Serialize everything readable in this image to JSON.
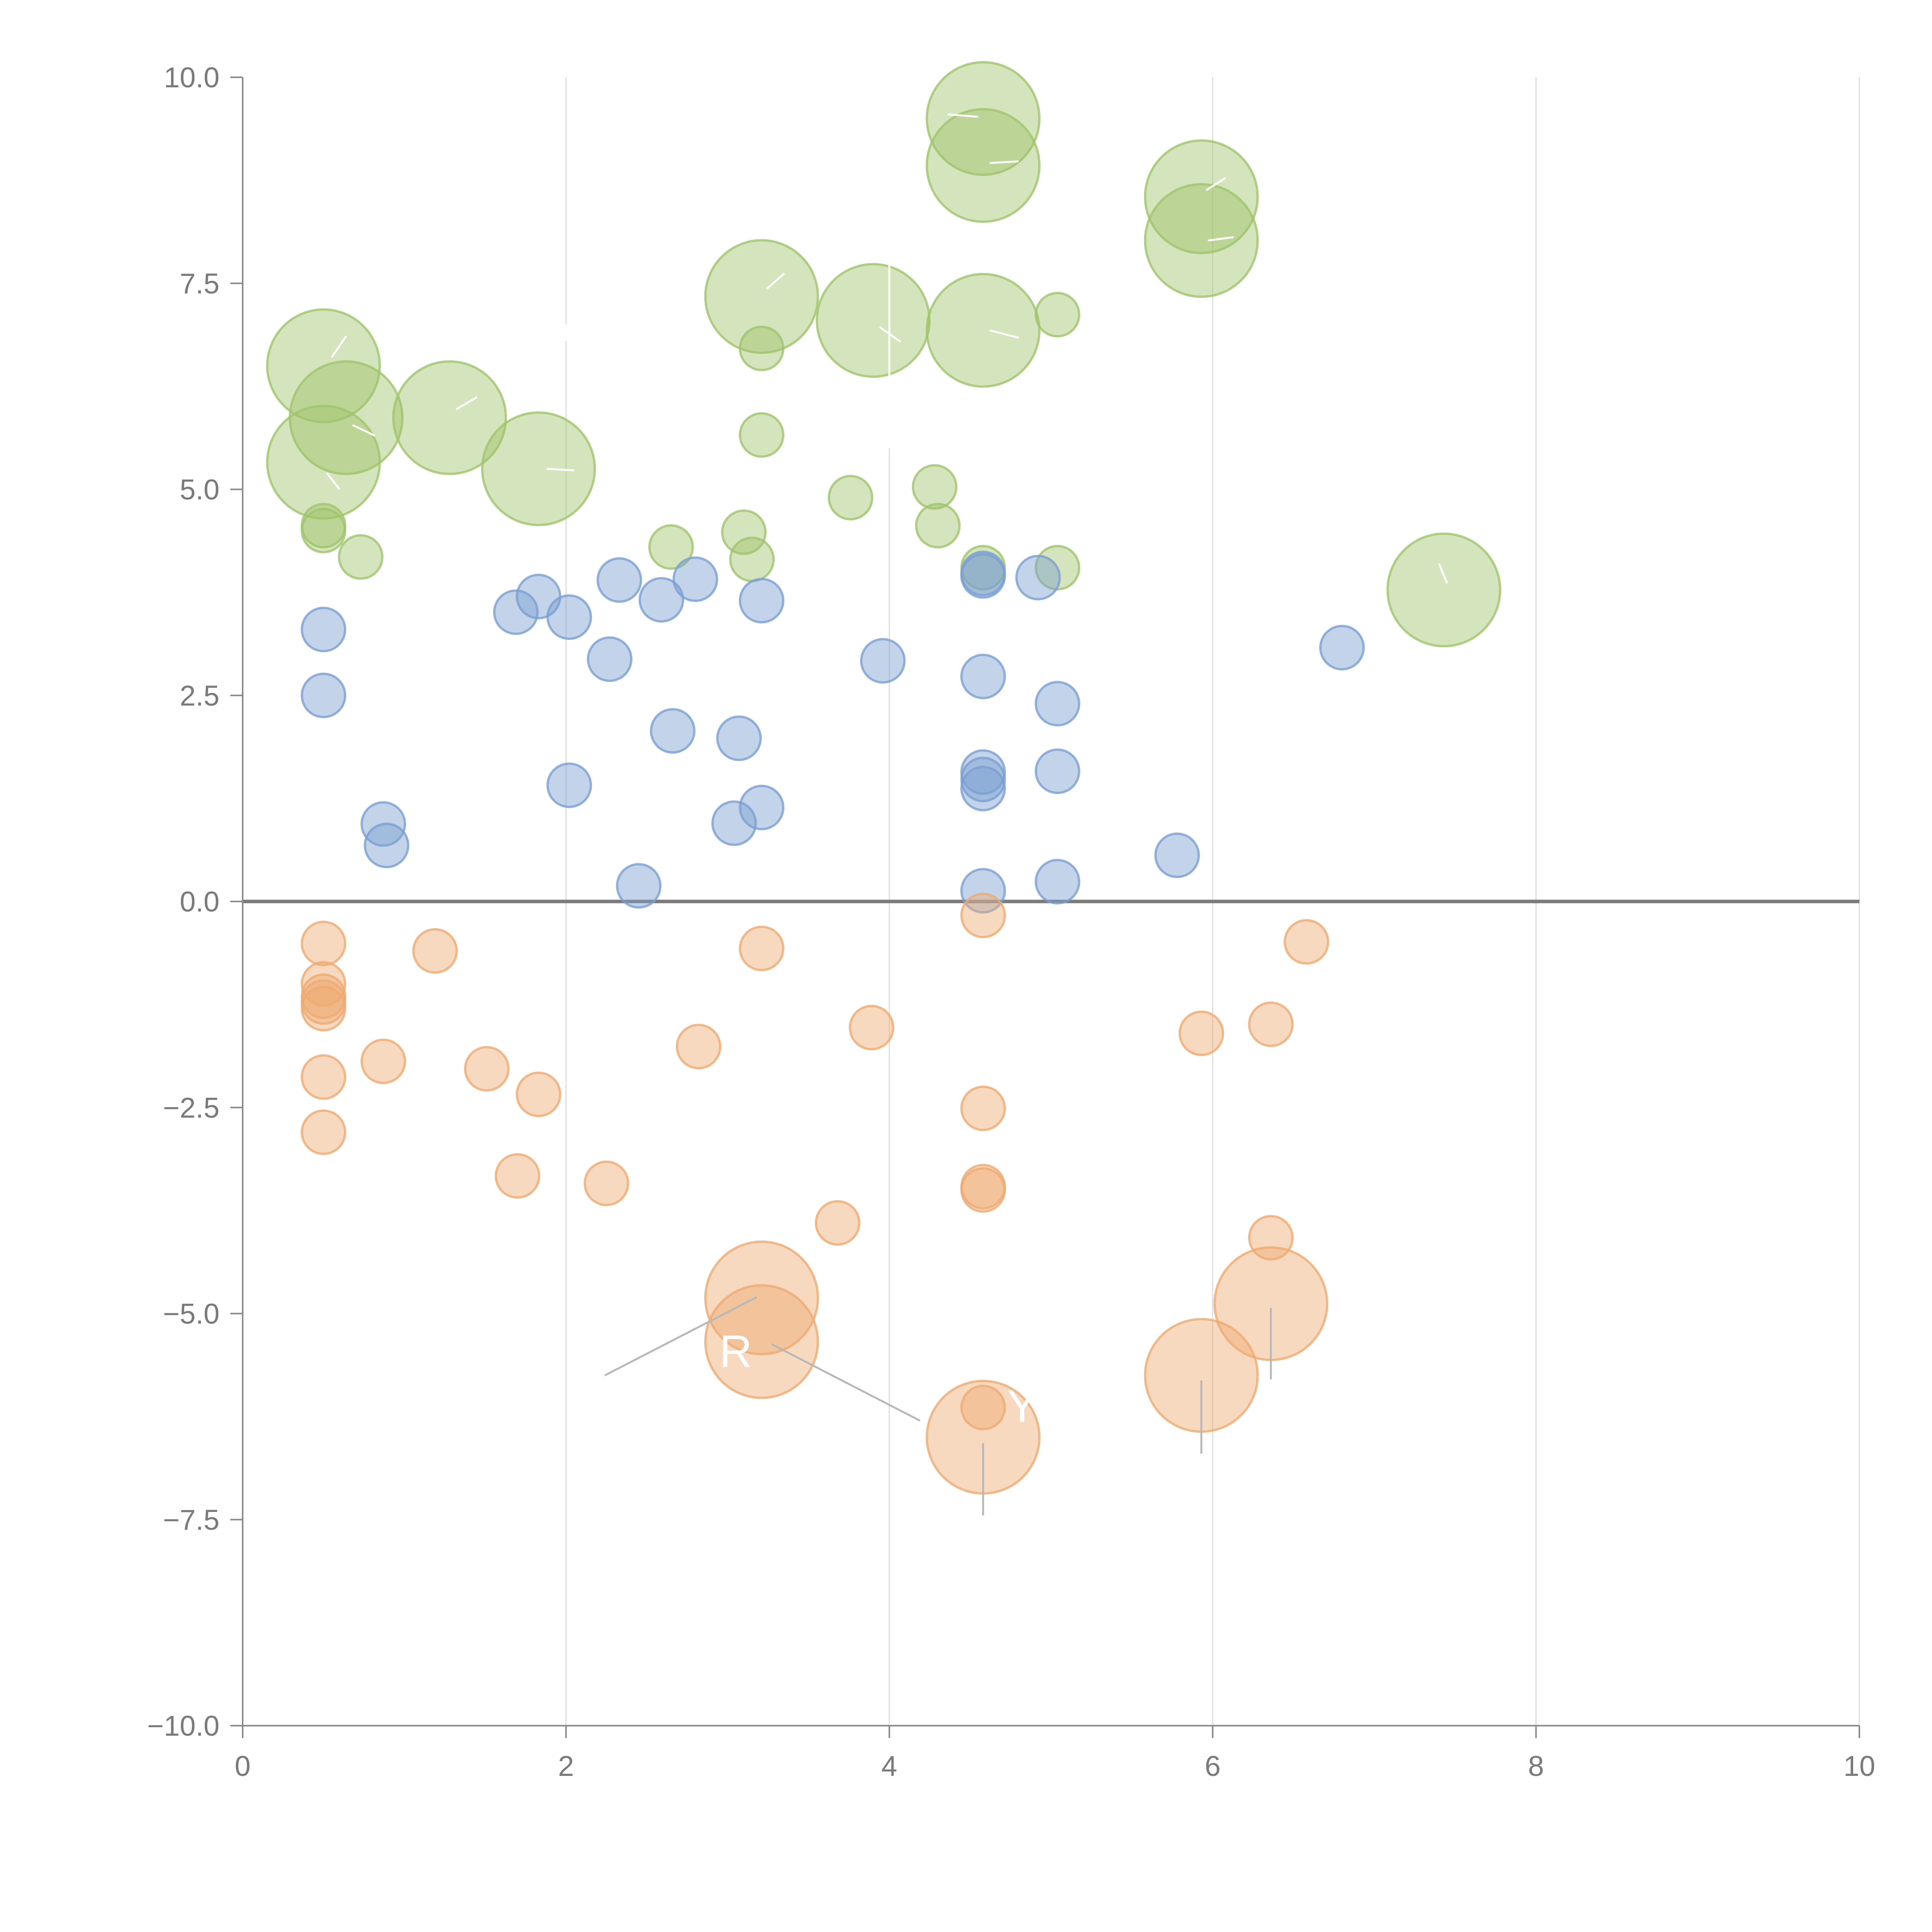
{
  "chart_data": {
    "type": "scatter",
    "title": "",
    "xlabel": "",
    "ylabel": "",
    "xlim": [
      0,
      10
    ],
    "ylim": [
      -10,
      10
    ],
    "x_ticks": [
      0,
      2,
      4,
      6,
      8,
      10
    ],
    "x_tick_labels": [
      "0",
      "2",
      "4",
      "6",
      "8",
      "10"
    ],
    "y_ticks": [
      10,
      7.5,
      5,
      2.5,
      0,
      -2.5,
      -5,
      -7.5,
      -10
    ],
    "y_tick_labels": [
      "10.0",
      "7.5",
      "5.0",
      "2.5",
      "0.0",
      "−2.5",
      "−5.0",
      "−7.5",
      "−10.0"
    ],
    "grid": "vertical",
    "series": [
      {
        "name": "green",
        "color": "#9fc46b",
        "points": [
          [
            4.58,
            9.5,
            2.6
          ],
          [
            4.58,
            8.93,
            2.6
          ],
          [
            5.93,
            8.55,
            2.6
          ],
          [
            5.93,
            8.02,
            2.6
          ],
          [
            3.21,
            7.34,
            2.6
          ],
          [
            3.9,
            7.05,
            2.6
          ],
          [
            4.58,
            6.93,
            2.6
          ],
          [
            5.04,
            7.12,
            1
          ],
          [
            3.21,
            6.71,
            1
          ],
          [
            0.5,
            6.5,
            2.6
          ],
          [
            0.64,
            5.87,
            2.6
          ],
          [
            1.28,
            5.87,
            2.6
          ],
          [
            0.5,
            5.33,
            2.6
          ],
          [
            1.83,
            5.25,
            2.6
          ],
          [
            3.21,
            5.66,
            1
          ],
          [
            3.76,
            4.9,
            1
          ],
          [
            4.28,
            5.03,
            1
          ],
          [
            4.3,
            4.56,
            1
          ],
          [
            0.5,
            4.56,
            1
          ],
          [
            0.5,
            4.5,
            1
          ],
          [
            0.73,
            4.18,
            1
          ],
          [
            2.65,
            4.3,
            1
          ],
          [
            3.1,
            4.48,
            1
          ],
          [
            3.15,
            4.15,
            1
          ],
          [
            4.58,
            4.05,
            1
          ],
          [
            5.04,
            4.05,
            1
          ],
          [
            7.43,
            3.78,
            2.6
          ]
        ]
      },
      {
        "name": "blue",
        "color": "#7b9fd1",
        "points": [
          [
            0.5,
            3.3,
            1
          ],
          [
            0.5,
            2.5,
            1
          ],
          [
            1.69,
            3.51,
            1
          ],
          [
            1.83,
            3.7,
            1
          ],
          [
            2.02,
            3.45,
            1
          ],
          [
            2.33,
            3.9,
            1
          ],
          [
            2.59,
            3.66,
            1
          ],
          [
            2.8,
            3.91,
            1
          ],
          [
            3.21,
            3.65,
            1
          ],
          [
            2.27,
            2.94,
            1
          ],
          [
            3.96,
            2.92,
            1
          ],
          [
            4.58,
            3.95,
            1
          ],
          [
            4.58,
            3.98,
            1
          ],
          [
            4.92,
            3.93,
            1
          ],
          [
            6.8,
            3.08,
            1
          ],
          [
            4.58,
            2.73,
            1
          ],
          [
            5.04,
            2.4,
            1
          ],
          [
            2.66,
            2.07,
            1
          ],
          [
            3.07,
            1.98,
            1
          ],
          [
            2.02,
            1.41,
            1
          ],
          [
            0.87,
            0.94,
            1
          ],
          [
            0.89,
            0.68,
            1
          ],
          [
            3.04,
            0.95,
            1
          ],
          [
            3.21,
            1.14,
            1
          ],
          [
            4.58,
            1.57,
            1
          ],
          [
            4.58,
            1.48,
            1
          ],
          [
            4.58,
            1.37,
            1
          ],
          [
            5.04,
            1.58,
            1
          ],
          [
            5.78,
            0.56,
            1
          ],
          [
            2.45,
            0.19,
            1
          ],
          [
            4.58,
            0.13,
            1
          ],
          [
            5.04,
            0.24,
            1
          ]
        ]
      },
      {
        "name": "orange",
        "color": "#eeaa72",
        "points": [
          [
            0.5,
            -0.51,
            1
          ],
          [
            0.5,
            -1.0,
            1
          ],
          [
            0.5,
            -1.15,
            1
          ],
          [
            0.5,
            -1.22,
            1
          ],
          [
            0.5,
            -1.3,
            1
          ],
          [
            1.19,
            -0.6,
            1
          ],
          [
            3.21,
            -0.57,
            1
          ],
          [
            4.58,
            -0.17,
            1
          ],
          [
            6.58,
            -0.49,
            1
          ],
          [
            0.5,
            -2.13,
            1
          ],
          [
            0.87,
            -1.94,
            1
          ],
          [
            1.51,
            -2.03,
            1
          ],
          [
            1.83,
            -2.34,
            1
          ],
          [
            2.82,
            -1.76,
            1
          ],
          [
            3.89,
            -1.53,
            1
          ],
          [
            5.93,
            -1.6,
            1
          ],
          [
            6.36,
            -1.49,
            1
          ],
          [
            0.5,
            -2.8,
            1
          ],
          [
            1.7,
            -3.33,
            1
          ],
          [
            2.25,
            -3.42,
            1
          ],
          [
            3.68,
            -3.9,
            1
          ],
          [
            4.58,
            -2.51,
            1
          ],
          [
            4.58,
            -3.46,
            1
          ],
          [
            4.58,
            -3.5,
            1
          ],
          [
            6.36,
            -4.08,
            1
          ],
          [
            3.21,
            -4.81,
            2.6
          ],
          [
            3.21,
            -5.34,
            2.6
          ],
          [
            6.36,
            -4.88,
            2.6
          ],
          [
            5.93,
            -5.75,
            2.6
          ],
          [
            4.58,
            -6.14,
            1
          ],
          [
            4.58,
            -6.5,
            2.6
          ]
        ]
      }
    ],
    "annotations": [
      {
        "text": "R",
        "x": 3.05,
        "y": -5.5
      },
      {
        "text": "YL",
        "x": 4.9,
        "y": -6.17
      }
    ],
    "leader_lines": [
      {
        "color": "#b8b8b8",
        "points": [
          [
            2.24,
            -5.75
          ],
          [
            3.18,
            -4.8
          ]
        ]
      },
      {
        "color": "#b8b8b8",
        "points": [
          [
            3.27,
            -5.37
          ],
          [
            4.19,
            -6.3
          ]
        ]
      },
      {
        "color": "#b8b8b8",
        "points": [
          [
            4.58,
            -6.57
          ],
          [
            4.58,
            -7.45
          ]
        ]
      },
      {
        "color": "#b8b8b8",
        "points": [
          [
            5.93,
            -5.81
          ],
          [
            5.93,
            -6.7
          ]
        ]
      },
      {
        "color": "#b8b8b8",
        "points": [
          [
            6.36,
            -4.93
          ],
          [
            6.36,
            -5.8
          ]
        ]
      },
      {
        "color": "#ffffff",
        "points": [
          [
            4.0,
            5.5
          ],
          [
            4.0,
            10.0
          ]
        ]
      },
      {
        "color": "#ffffff",
        "points": [
          [
            2.0,
            6.8
          ],
          [
            2.0,
            7.0
          ]
        ]
      },
      {
        "color": "#ffffff",
        "points": [
          [
            0.55,
            6.6
          ],
          [
            0.64,
            6.86
          ]
        ]
      },
      {
        "color": "#ffffff",
        "points": [
          [
            0.68,
            5.78
          ],
          [
            0.82,
            5.65
          ]
        ]
      },
      {
        "color": "#ffffff",
        "points": [
          [
            1.32,
            5.97
          ],
          [
            1.45,
            6.12
          ]
        ]
      },
      {
        "color": "#ffffff",
        "points": [
          [
            0.52,
            5.2
          ],
          [
            0.6,
            5.0
          ]
        ]
      },
      {
        "color": "#ffffff",
        "points": [
          [
            1.88,
            5.25
          ],
          [
            2.05,
            5.23
          ]
        ]
      },
      {
        "color": "#ffffff",
        "points": [
          [
            3.24,
            7.43
          ],
          [
            3.35,
            7.62
          ]
        ]
      },
      {
        "color": "#ffffff",
        "points": [
          [
            3.94,
            6.97
          ],
          [
            4.07,
            6.79
          ]
        ]
      },
      {
        "color": "#ffffff",
        "points": [
          [
            4.62,
            6.93
          ],
          [
            4.8,
            6.84
          ]
        ]
      },
      {
        "color": "#ffffff",
        "points": [
          [
            4.55,
            9.52
          ],
          [
            4.36,
            9.55
          ]
        ]
      },
      {
        "color": "#ffffff",
        "points": [
          [
            4.62,
            8.96
          ],
          [
            4.8,
            8.98
          ]
        ]
      },
      {
        "color": "#ffffff",
        "points": [
          [
            5.96,
            8.63
          ],
          [
            6.08,
            8.78
          ]
        ]
      },
      {
        "color": "#ffffff",
        "points": [
          [
            5.97,
            8.02
          ],
          [
            6.13,
            8.06
          ]
        ]
      },
      {
        "color": "#ffffff",
        "points": [
          [
            7.45,
            3.86
          ],
          [
            7.4,
            4.1
          ]
        ]
      }
    ]
  }
}
